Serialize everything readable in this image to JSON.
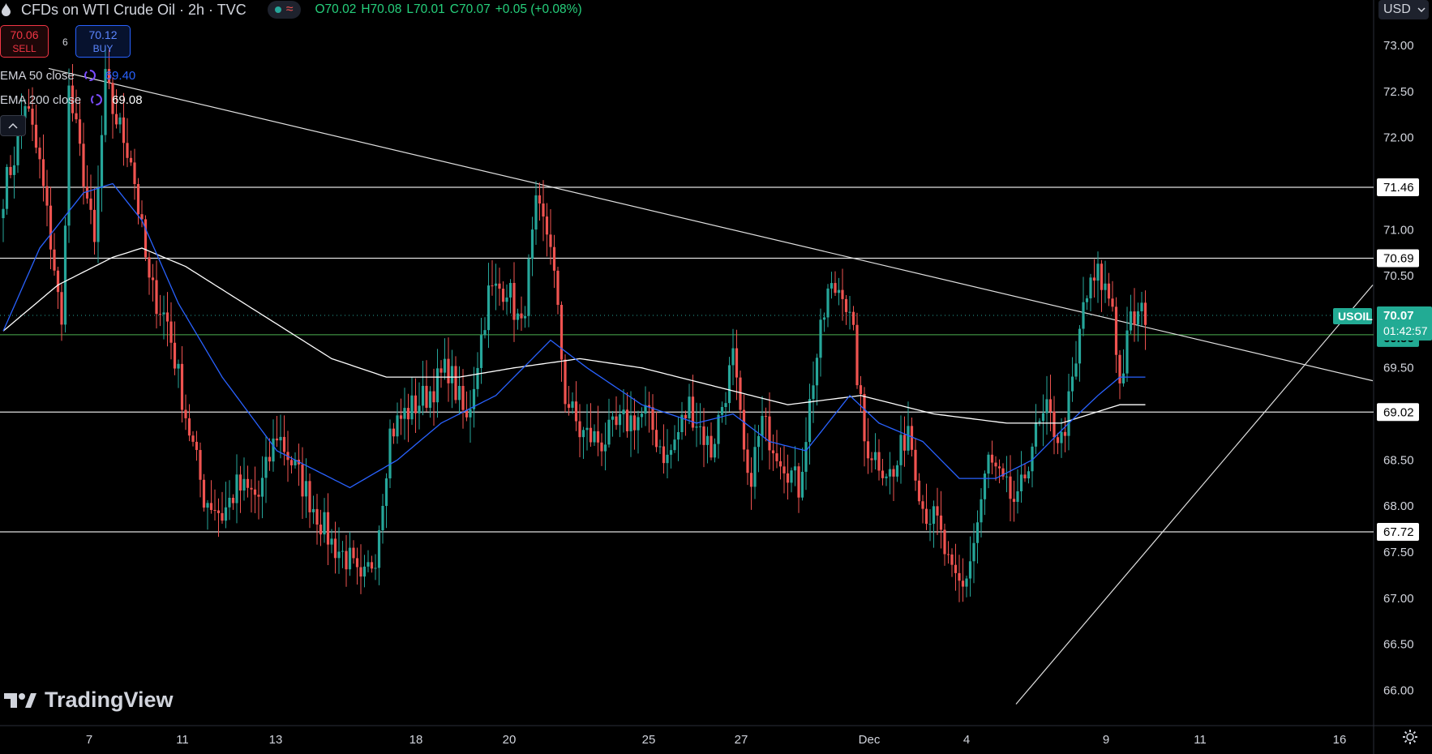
{
  "header": {
    "title": "CFDs on WTI Crude Oil · 2h · TVC",
    "ohlc": {
      "open": "O70.02",
      "high": "H70.08",
      "low": "L70.01",
      "close": "C70.07",
      "change": "+0.05 (+0.08%)"
    }
  },
  "trade": {
    "sell_price": "70.06",
    "sell_label": "SELL",
    "spread": "6",
    "buy_price": "70.12",
    "buy_label": "BUY"
  },
  "indicators": [
    {
      "label": "EMA 50 close",
      "value": "69.40",
      "color": "#2962ff"
    },
    {
      "label": "EMA 200 close",
      "value": "69.08",
      "color": "#ffffff"
    }
  ],
  "currency": "USD",
  "branding": "TradingView",
  "chart_data": {
    "type": "candlestick",
    "symbol": "USOIL",
    "last_price": "70.07",
    "countdown": "01:42:57",
    "y_ticks": [
      "73.00",
      "72.50",
      "72.00",
      "71.00",
      "70.50",
      "69.50",
      "68.50",
      "68.00",
      "67.50",
      "67.00",
      "66.50",
      "66.00"
    ],
    "x_ticks": [
      "7",
      "11",
      "13",
      "18",
      "20",
      "25",
      "27",
      "Dec",
      "4",
      "9",
      "11",
      "16"
    ],
    "ylim": [
      65.8,
      73.2
    ],
    "horizontal_levels": [
      71.46,
      70.69,
      69.02,
      67.72
    ],
    "level_labels": [
      "71.46",
      "70.69",
      "69.02",
      "67.72"
    ],
    "green_level": "69.86",
    "colors": {
      "up": "#26a69a",
      "down": "#ef5350",
      "ema50": "#2962ff",
      "ema200": "#ffffff",
      "badge": "#22ab94"
    },
    "anchors": [
      [
        0,
        71.4
      ],
      [
        3,
        71.8
      ],
      [
        6,
        72.4
      ],
      [
        10,
        71.7
      ],
      [
        14,
        70.6
      ],
      [
        16,
        69.9
      ],
      [
        18,
        72.5
      ],
      [
        22,
        71.6
      ],
      [
        25,
        70.8
      ],
      [
        28,
        72.6
      ],
      [
        30,
        72.3
      ],
      [
        35,
        71.8
      ],
      [
        40,
        70.4
      ],
      [
        45,
        70.0
      ],
      [
        50,
        69.0
      ],
      [
        55,
        68.1
      ],
      [
        58,
        68.0
      ],
      [
        60,
        67.9
      ],
      [
        64,
        68.2
      ],
      [
        70,
        68.1
      ],
      [
        75,
        68.8
      ],
      [
        80,
        68.4
      ],
      [
        85,
        68.0
      ],
      [
        90,
        67.6
      ],
      [
        95,
        67.4
      ],
      [
        98,
        67.1
      ],
      [
        102,
        67.5
      ],
      [
        106,
        68.8
      ],
      [
        110,
        69.0
      ],
      [
        116,
        69.2
      ],
      [
        122,
        69.5
      ],
      [
        127,
        68.9
      ],
      [
        133,
        70.3
      ],
      [
        138,
        70.4
      ],
      [
        142,
        69.9
      ],
      [
        146,
        71.2
      ],
      [
        150,
        70.9
      ],
      [
        154,
        69.2
      ],
      [
        158,
        68.8
      ],
      [
        164,
        68.7
      ],
      [
        170,
        68.9
      ],
      [
        176,
        69.0
      ],
      [
        182,
        68.5
      ],
      [
        188,
        69.1
      ],
      [
        194,
        68.6
      ],
      [
        200,
        69.6
      ],
      [
        204,
        68.2
      ],
      [
        208,
        68.9
      ],
      [
        214,
        68.5
      ],
      [
        218,
        68.2
      ],
      [
        222,
        69.4
      ],
      [
        226,
        70.3
      ],
      [
        230,
        70.4
      ],
      [
        233,
        69.8
      ],
      [
        236,
        68.7
      ],
      [
        240,
        68.5
      ],
      [
        244,
        68.3
      ],
      [
        248,
        68.9
      ],
      [
        252,
        68.0
      ],
      [
        256,
        67.8
      ],
      [
        260,
        67.2
      ],
      [
        263,
        67.1
      ],
      [
        266,
        67.6
      ],
      [
        270,
        68.5
      ],
      [
        274,
        68.2
      ],
      [
        278,
        68.0
      ],
      [
        282,
        68.7
      ],
      [
        286,
        69.0
      ],
      [
        290,
        68.7
      ],
      [
        294,
        69.5
      ],
      [
        296,
        70.2
      ],
      [
        300,
        70.5
      ],
      [
        304,
        70.2
      ],
      [
        306,
        69.3
      ],
      [
        309,
        70.0
      ],
      [
        313,
        70.1
      ]
    ],
    "ema50_points": [
      [
        0,
        69.9
      ],
      [
        10,
        70.8
      ],
      [
        22,
        71.4
      ],
      [
        30,
        71.5
      ],
      [
        38,
        71.1
      ],
      [
        48,
        70.2
      ],
      [
        60,
        69.4
      ],
      [
        75,
        68.6
      ],
      [
        95,
        68.2
      ],
      [
        108,
        68.5
      ],
      [
        120,
        68.9
      ],
      [
        135,
        69.2
      ],
      [
        150,
        69.8
      ],
      [
        160,
        69.5
      ],
      [
        175,
        69.1
      ],
      [
        190,
        68.9
      ],
      [
        200,
        69.0
      ],
      [
        210,
        68.7
      ],
      [
        220,
        68.6
      ],
      [
        232,
        69.2
      ],
      [
        240,
        68.9
      ],
      [
        252,
        68.7
      ],
      [
        262,
        68.3
      ],
      [
        272,
        68.3
      ],
      [
        282,
        68.5
      ],
      [
        292,
        68.9
      ],
      [
        300,
        69.2
      ],
      [
        306,
        69.4
      ]
    ],
    "ema200_points": [
      [
        0,
        69.9
      ],
      [
        15,
        70.4
      ],
      [
        30,
        70.7
      ],
      [
        38,
        70.8
      ],
      [
        50,
        70.6
      ],
      [
        70,
        70.1
      ],
      [
        90,
        69.6
      ],
      [
        105,
        69.4
      ],
      [
        125,
        69.4
      ],
      [
        140,
        69.5
      ],
      [
        158,
        69.6
      ],
      [
        175,
        69.5
      ],
      [
        195,
        69.3
      ],
      [
        215,
        69.1
      ],
      [
        235,
        69.2
      ],
      [
        255,
        69.0
      ],
      [
        275,
        68.9
      ],
      [
        290,
        68.9
      ],
      [
        306,
        69.1
      ]
    ]
  }
}
